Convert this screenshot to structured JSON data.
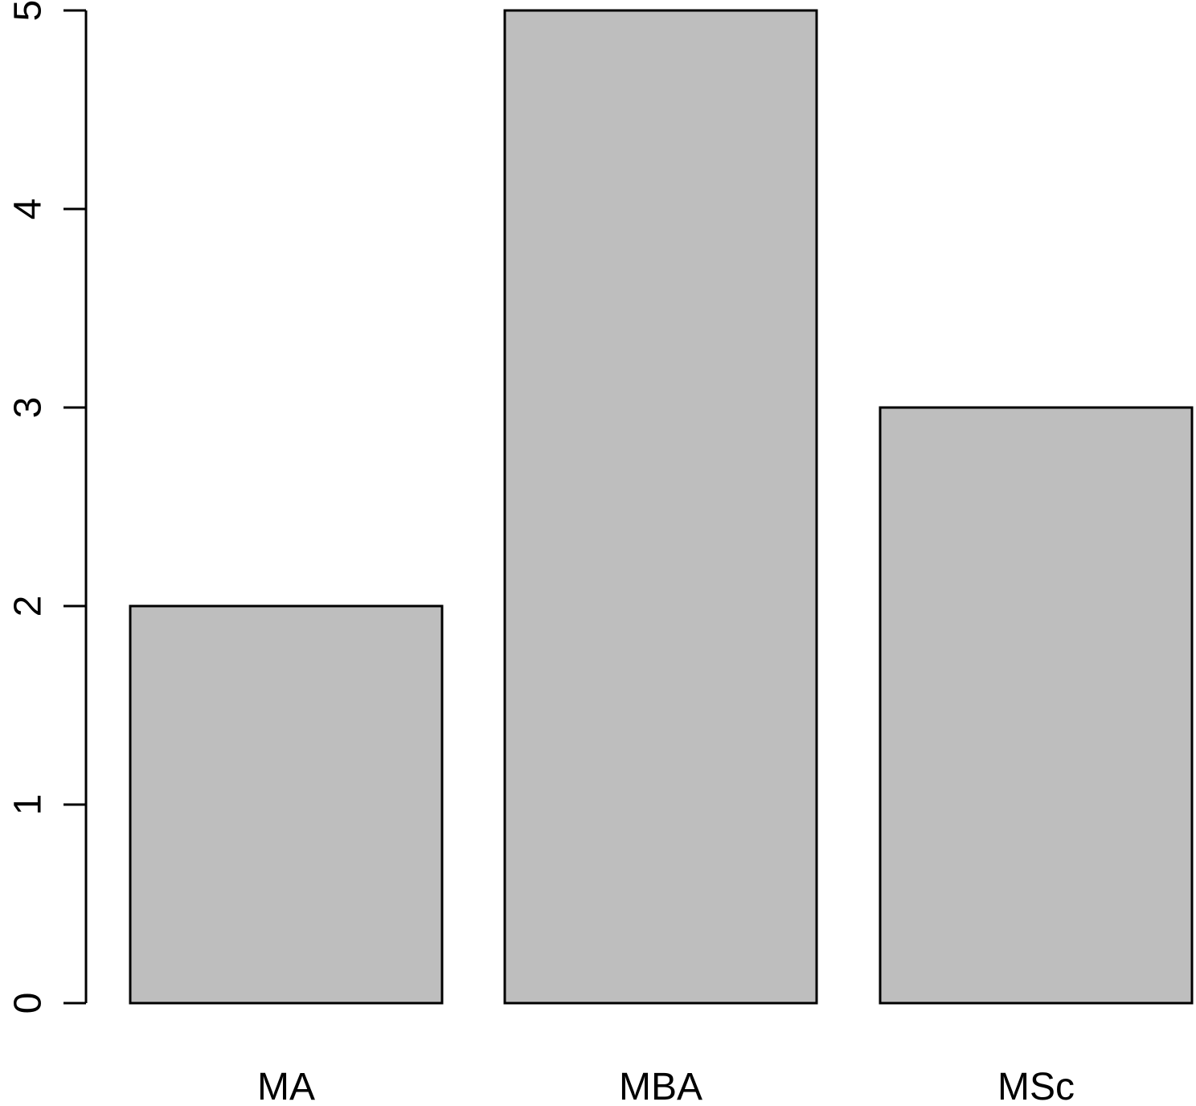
{
  "chart_data": {
    "type": "bar",
    "categories": [
      "MA",
      "MBA",
      "MSc"
    ],
    "values": [
      2,
      5,
      3
    ],
    "title": "",
    "xlabel": "",
    "ylabel": "",
    "ylim": [
      0,
      5
    ],
    "y_ticks": [
      0,
      1,
      2,
      3,
      4,
      5
    ],
    "grid": false,
    "legend": "none",
    "colors": {
      "bar_fill": "#bebebe",
      "bar_stroke": "#000000",
      "axis": "#000000",
      "background": "#ffffff"
    }
  }
}
